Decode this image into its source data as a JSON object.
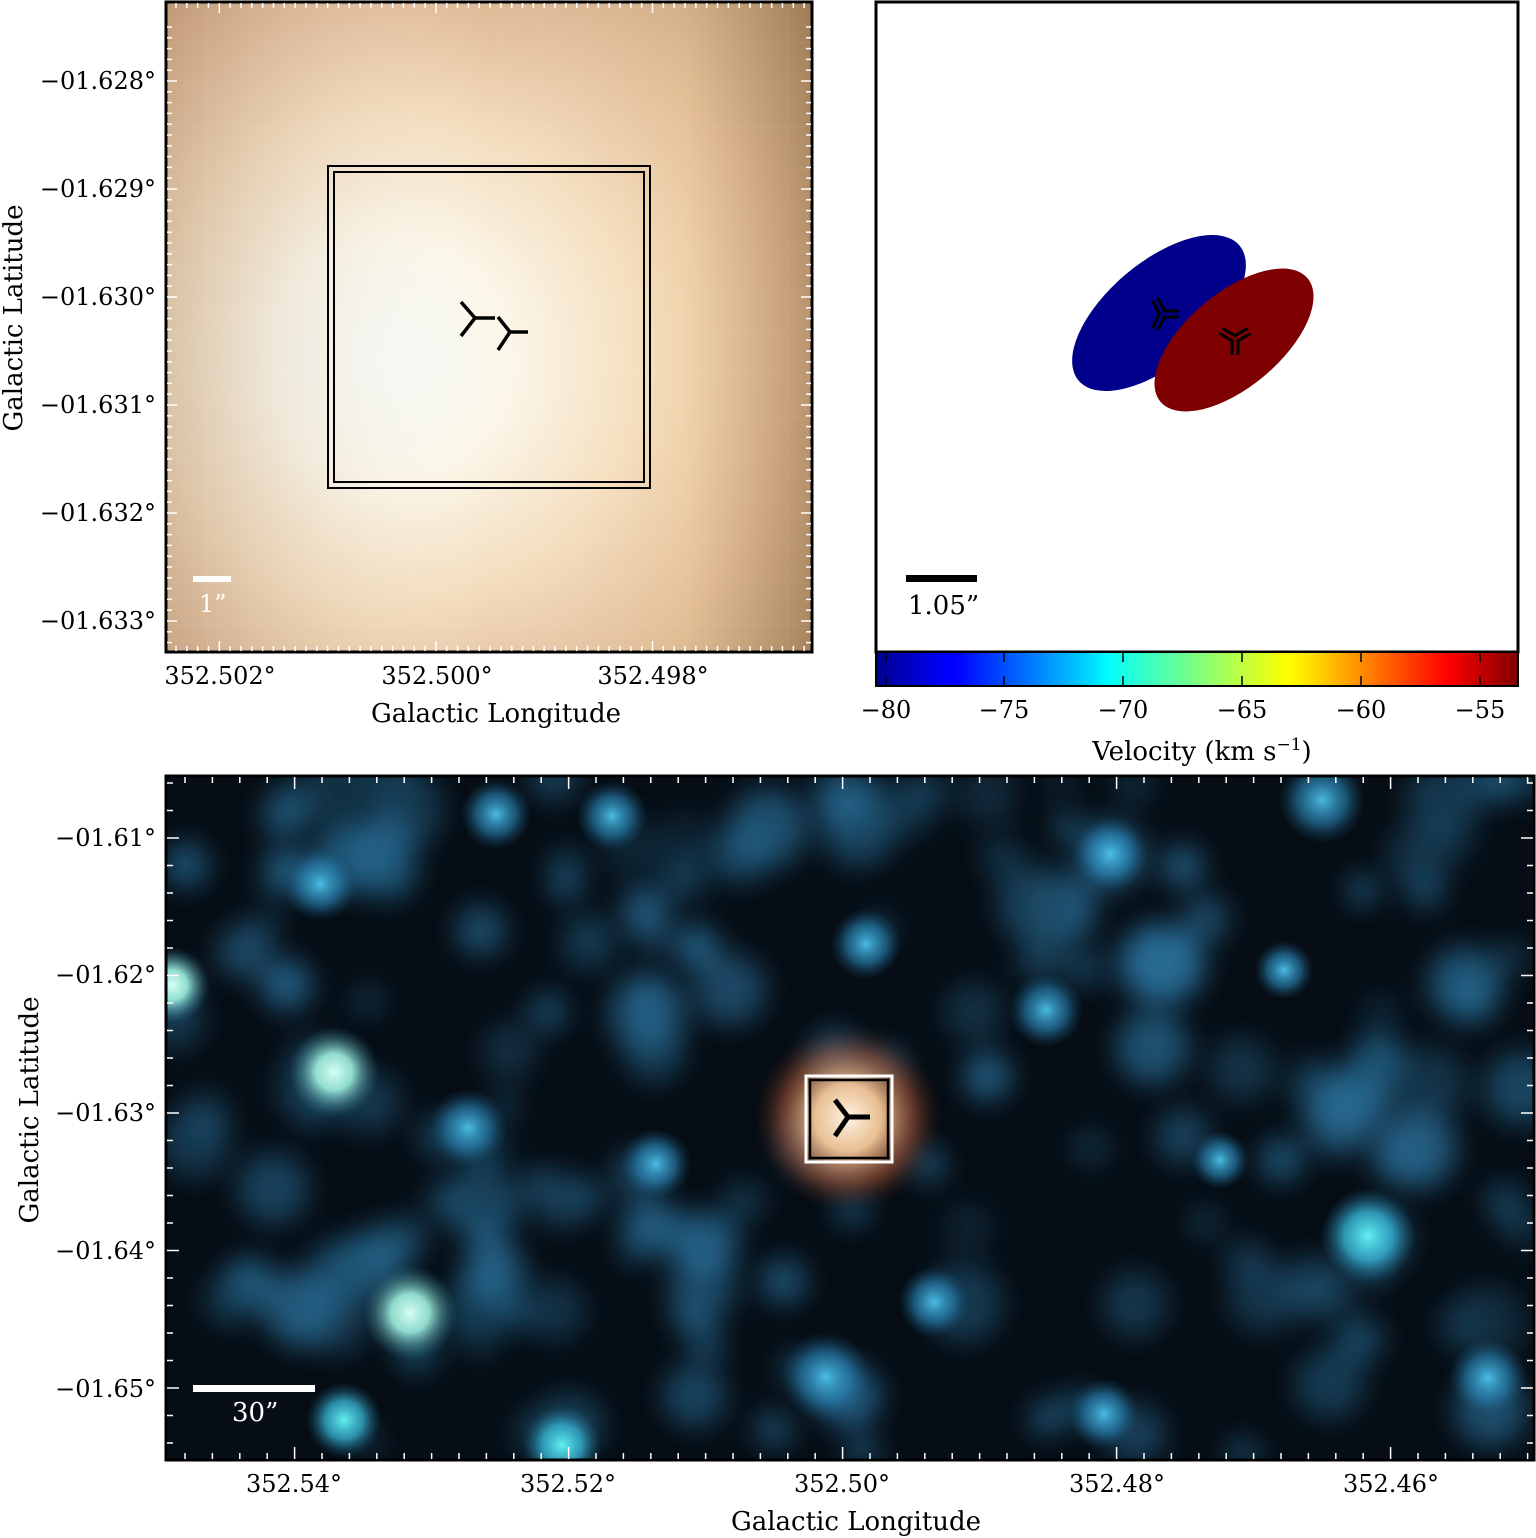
{
  "panel_zoom": {
    "y_ticks": [
      "−01.628°",
      "−01.629°",
      "−01.630°",
      "−01.631°",
      "−01.632°",
      "−01.633°"
    ],
    "x_ticks": [
      "352.502°",
      "352.500°",
      "352.498°"
    ],
    "ylabel": "Galactic Latitude",
    "xlabel": "Galactic Longitude",
    "scalebar": "1”",
    "colors": {
      "bright": "#f6fbf6",
      "mid": "#f0d0a8",
      "dark": "#a47c58"
    }
  },
  "panel_velocity": {
    "scalebar": "1.05”",
    "colorbar": {
      "ticks": [
        "−80",
        "−75",
        "−70",
        "−65",
        "−60",
        "−55"
      ],
      "label_prefix": "Velocity (km s",
      "label_exp": "−1",
      "label_suffix": ")",
      "colormap": "jet"
    },
    "components": [
      {
        "name": "blue",
        "color": "#00008b",
        "velocity_approx": -80
      },
      {
        "name": "red",
        "color": "#7f0000",
        "velocity_approx": -53
      }
    ]
  },
  "panel_wide": {
    "y_ticks": [
      "−01.61°",
      "−01.62°",
      "−01.63°",
      "−01.64°",
      "−01.65°"
    ],
    "x_ticks": [
      "352.54°",
      "352.52°",
      "352.50°",
      "352.48°",
      "352.46°"
    ],
    "ylabel": "Galactic Latitude",
    "xlabel": "Galactic Longitude",
    "scalebar": "30”",
    "colors": {
      "background": "#060d14",
      "star": "#3aa8d8",
      "star_bright": "#9ff2e6",
      "source": "#ffe8cc"
    }
  }
}
